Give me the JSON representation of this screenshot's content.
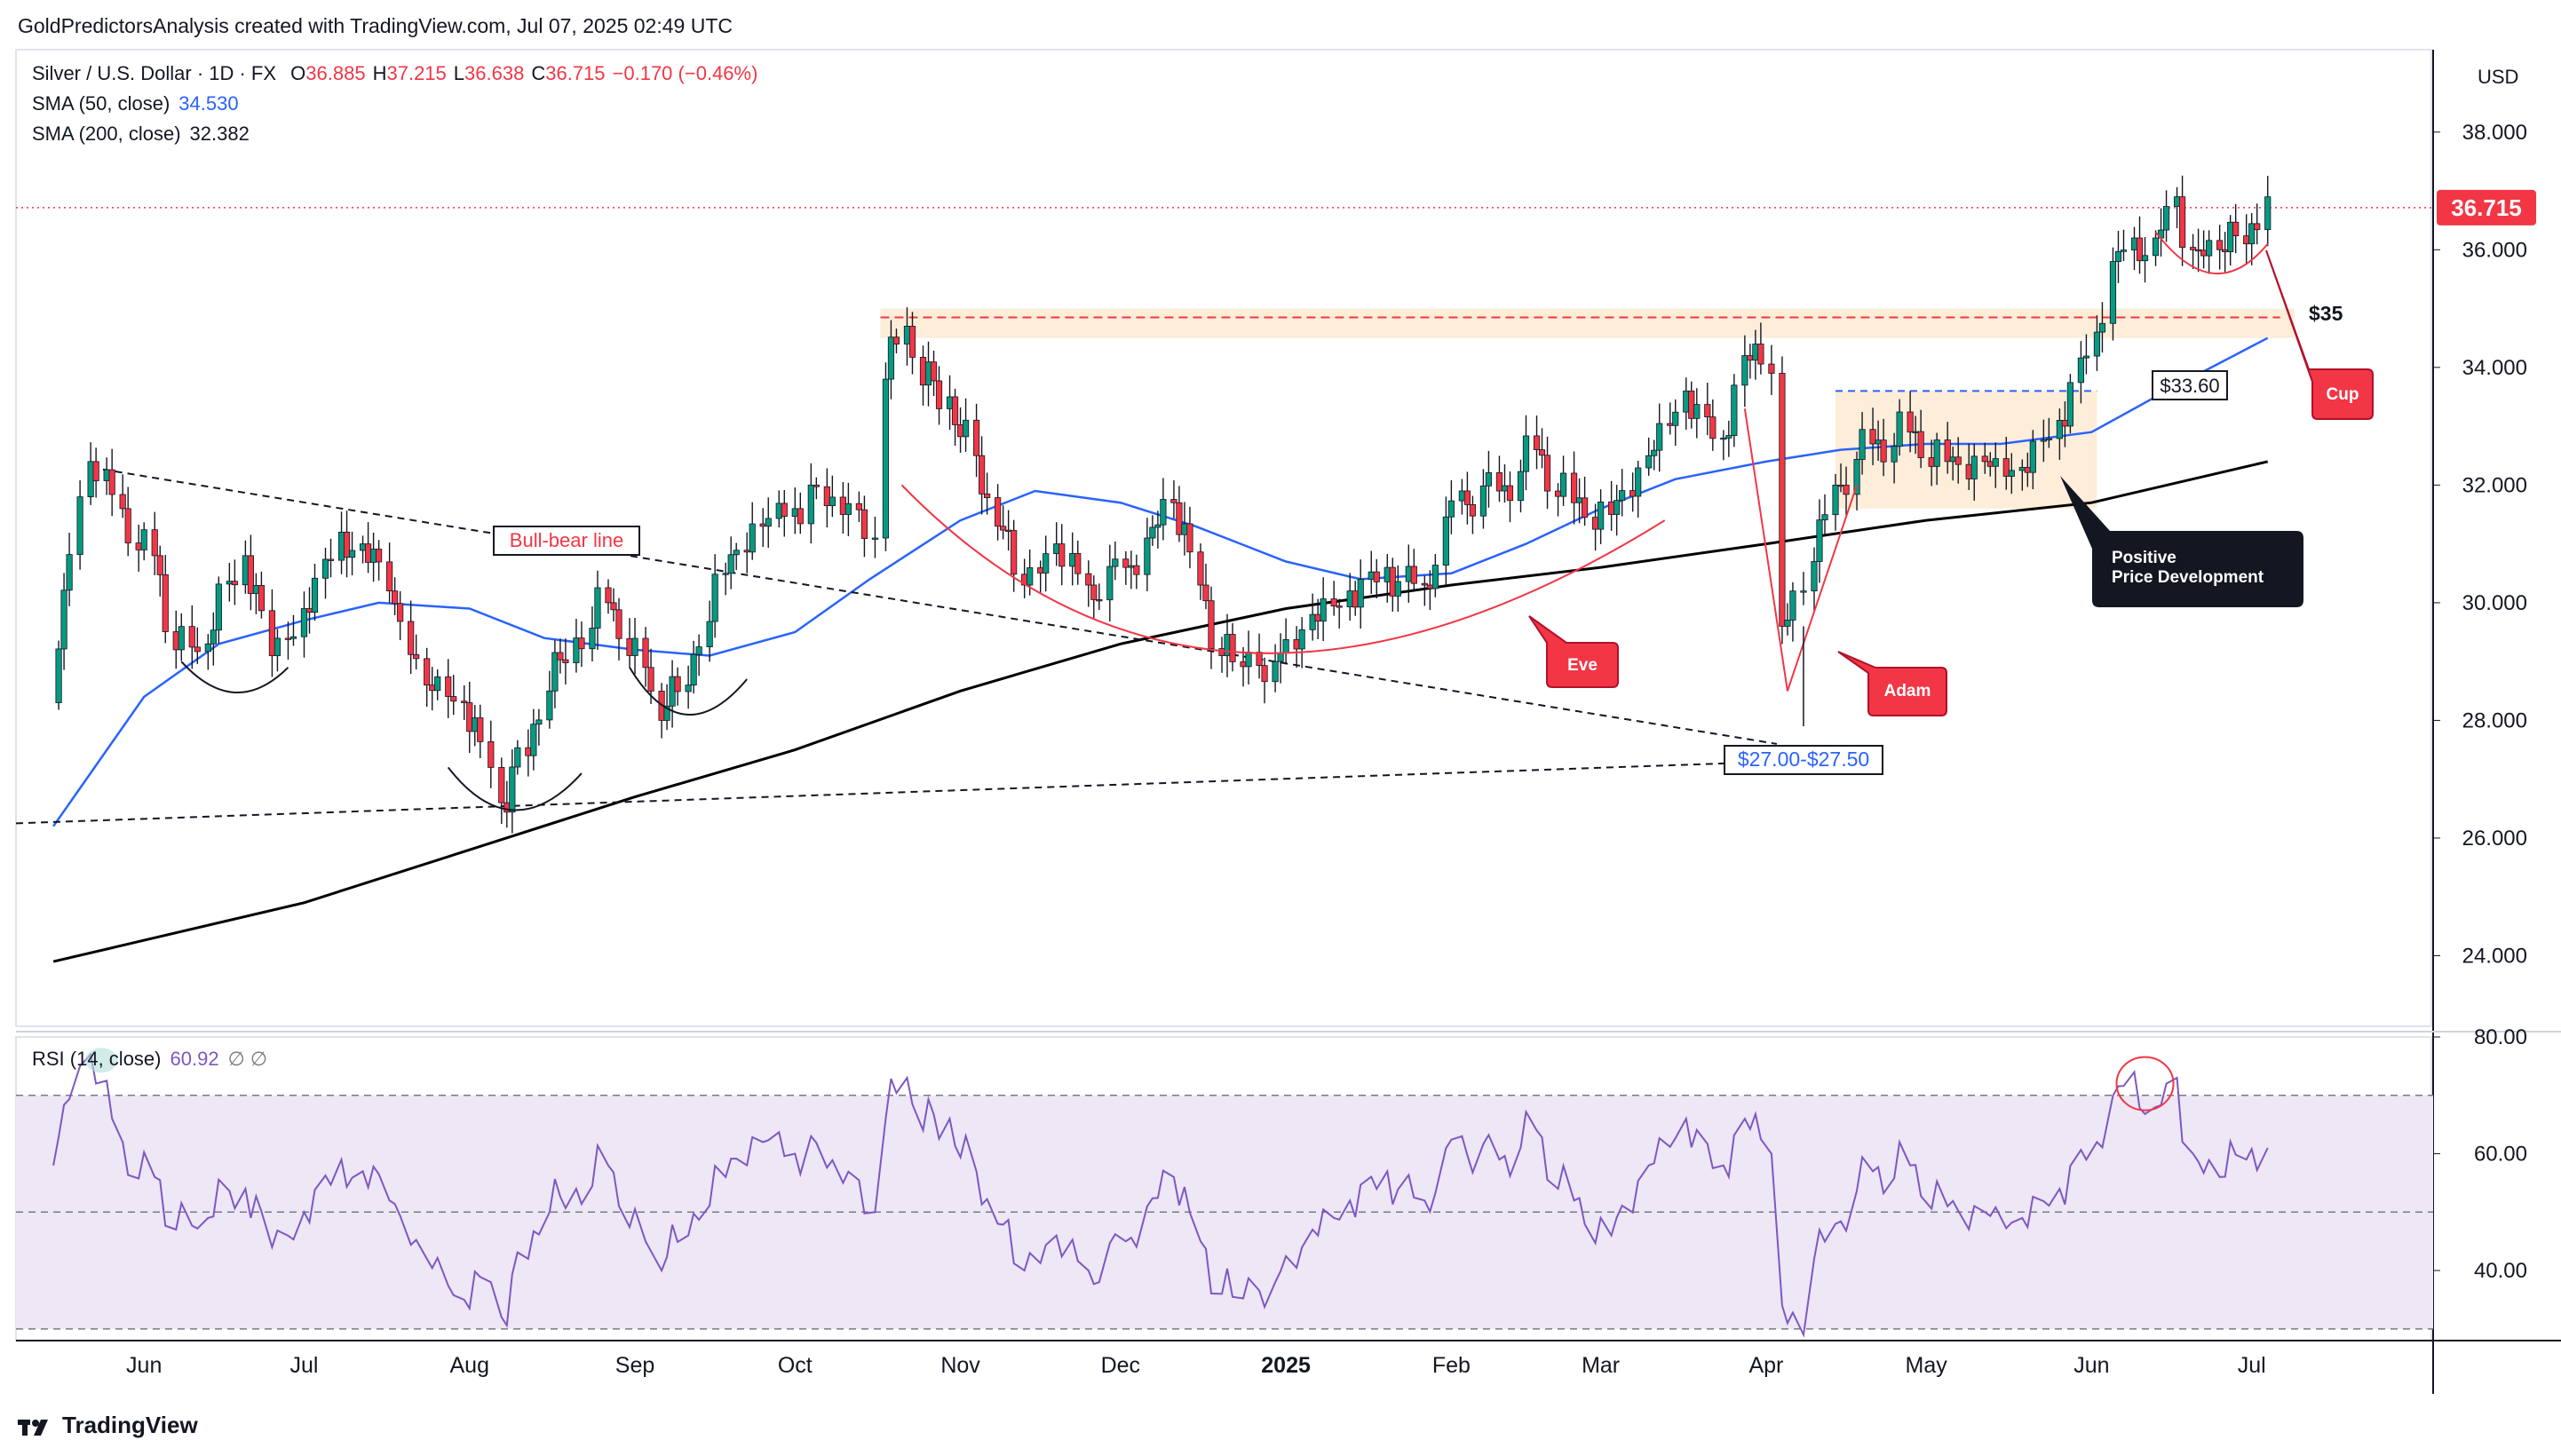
{
  "header": {
    "credit": "GoldPredictorsAnalysis created with TradingView.com, Jul 07, 2025 02:49 UTC"
  },
  "legend": {
    "symbol": "Silver / U.S. Dollar · 1D · FX",
    "ohlc": {
      "open_label": "O",
      "open": "36.885",
      "high_label": "H",
      "high": "37.215",
      "low_label": "L",
      "low": "36.638",
      "close_label": "C",
      "close": "36.715",
      "change": "−0.170 (−0.46%)"
    },
    "sma50": {
      "label": "SMA (50, close)",
      "value": "34.530"
    },
    "sma200": {
      "label": "SMA (200, close)",
      "value": "32.382"
    },
    "rsi": {
      "label": "RSI (14, close)",
      "value": "60.92",
      "extra": "∅  ∅"
    }
  },
  "brand": {
    "name": "TradingView"
  },
  "colors": {
    "up": "#089981",
    "down": "#f23645",
    "sma50": "#2962ff",
    "sma200": "#000000",
    "rsi": "#7e57c2",
    "rsi_band": "#ede7f6",
    "zone": "#fdebd5",
    "accent_red": "#f23645",
    "dark_box": "#131722"
  },
  "chart_data": [
    {
      "type": "candlestick",
      "title": "Silver / U.S. Dollar · 1D · FX",
      "currency": "USD",
      "ylim": [
        22.8,
        39.4
      ],
      "y_ticks": [
        24,
        26,
        28,
        30,
        32,
        34,
        36,
        38
      ],
      "y_tick_labels": [
        "24.000",
        "26.000",
        "28.000",
        "30.000",
        "32.000",
        "34.000",
        "36.000",
        "38.000"
      ],
      "x_labels": [
        "Jun",
        "Jul",
        "Aug",
        "Sep",
        "Oct",
        "Nov",
        "Dec",
        "2025",
        "Feb",
        "Mar",
        "Apr",
        "May",
        "Jun",
        "Jul"
      ],
      "last_price": "36.715",
      "close_series": [
        {
          "date": "2024-05-15",
          "close": 28.3
        },
        {
          "date": "2024-05-20",
          "close": 31.8
        },
        {
          "date": "2024-05-22",
          "close": 32.4
        },
        {
          "date": "2024-05-28",
          "close": 31.6
        },
        {
          "date": "2024-06-03",
          "close": 30.8
        },
        {
          "date": "2024-06-07",
          "close": 29.2
        },
        {
          "date": "2024-06-13",
          "close": 29.3
        },
        {
          "date": "2024-06-20",
          "close": 30.8
        },
        {
          "date": "2024-06-25",
          "close": 29.1
        },
        {
          "date": "2024-07-01",
          "close": 29.9
        },
        {
          "date": "2024-07-08",
          "close": 31.2
        },
        {
          "date": "2024-07-12",
          "close": 31.0
        },
        {
          "date": "2024-07-17",
          "close": 30.2
        },
        {
          "date": "2024-07-24",
          "close": 28.6
        },
        {
          "date": "2024-07-31",
          "close": 28.3
        },
        {
          "date": "2024-08-05",
          "close": 27.2
        },
        {
          "date": "2024-08-07",
          "close": 26.6
        },
        {
          "date": "2024-08-12",
          "close": 27.4
        },
        {
          "date": "2024-08-16",
          "close": 28.5
        },
        {
          "date": "2024-08-21",
          "close": 29.4
        },
        {
          "date": "2024-08-27",
          "close": 30.0
        },
        {
          "date": "2024-09-03",
          "close": 28.9
        },
        {
          "date": "2024-09-06",
          "close": 28.0
        },
        {
          "date": "2024-09-11",
          "close": 28.6
        },
        {
          "date": "2024-09-18",
          "close": 30.5
        },
        {
          "date": "2024-09-25",
          "close": 31.3
        },
        {
          "date": "2024-10-01",
          "close": 31.6
        },
        {
          "date": "2024-10-04",
          "close": 32.0
        },
        {
          "date": "2024-10-10",
          "close": 31.5
        },
        {
          "date": "2024-10-16",
          "close": 31.1
        },
        {
          "date": "2024-10-18",
          "close": 33.8
        },
        {
          "date": "2024-10-22",
          "close": 34.7
        },
        {
          "date": "2024-10-25",
          "close": 33.7
        },
        {
          "date": "2024-10-30",
          "close": 33.5
        },
        {
          "date": "2024-11-04",
          "close": 32.5
        },
        {
          "date": "2024-11-08",
          "close": 31.3
        },
        {
          "date": "2024-11-13",
          "close": 30.3
        },
        {
          "date": "2024-11-19",
          "close": 31.0
        },
        {
          "date": "2024-11-25",
          "close": 30.3
        },
        {
          "date": "2024-12-02",
          "close": 30.6
        },
        {
          "date": "2024-12-06",
          "close": 31.1
        },
        {
          "date": "2024-12-11",
          "close": 31.7
        },
        {
          "date": "2024-12-16",
          "close": 30.3
        },
        {
          "date": "2024-12-20",
          "close": 29.1
        },
        {
          "date": "2024-12-30",
          "close": 29.0
        },
        {
          "date": "2025-01-06",
          "close": 29.8
        },
        {
          "date": "2025-01-13",
          "close": 30.2
        },
        {
          "date": "2025-01-20",
          "close": 30.6
        },
        {
          "date": "2025-01-27",
          "close": 30.3
        },
        {
          "date": "2025-02-03",
          "close": 31.9
        },
        {
          "date": "2025-02-10",
          "close": 31.9
        },
        {
          "date": "2025-02-17",
          "close": 32.6
        },
        {
          "date": "2025-02-24",
          "close": 31.7
        },
        {
          "date": "2025-03-03",
          "close": 31.5
        },
        {
          "date": "2025-03-10",
          "close": 32.5
        },
        {
          "date": "2025-03-17",
          "close": 33.6
        },
        {
          "date": "2025-03-24",
          "close": 32.8
        },
        {
          "date": "2025-03-28",
          "close": 34.2
        },
        {
          "date": "2025-04-02",
          "close": 33.9
        },
        {
          "date": "2025-04-04",
          "close": 29.6
        },
        {
          "date": "2025-04-08",
          "close": 30.2
        },
        {
          "date": "2025-04-10",
          "close": 30.7
        },
        {
          "date": "2025-04-14",
          "close": 32.0
        },
        {
          "date": "2025-04-21",
          "close": 32.7
        },
        {
          "date": "2025-04-28",
          "close": 32.9
        },
        {
          "date": "2025-05-05",
          "close": 32.4
        },
        {
          "date": "2025-05-12",
          "close": 32.4
        },
        {
          "date": "2025-05-19",
          "close": 32.3
        },
        {
          "date": "2025-05-26",
          "close": 33.1
        },
        {
          "date": "2025-06-02",
          "close": 34.6
        },
        {
          "date": "2025-06-05",
          "close": 35.8
        },
        {
          "date": "2025-06-09",
          "close": 36.2
        },
        {
          "date": "2025-06-13",
          "close": 36.2
        },
        {
          "date": "2025-06-17",
          "close": 36.9
        },
        {
          "date": "2025-06-20",
          "close": 36.0
        },
        {
          "date": "2025-06-25",
          "close": 36.0
        },
        {
          "date": "2025-06-30",
          "close": 36.1
        },
        {
          "date": "2025-07-04",
          "close": 36.9
        }
      ],
      "sma50_series": [
        {
          "date": "2024-05-15",
          "value": 26.2
        },
        {
          "date": "2024-06-01",
          "value": 28.4
        },
        {
          "date": "2024-06-15",
          "value": 29.3
        },
        {
          "date": "2024-07-01",
          "value": 29.7
        },
        {
          "date": "2024-07-15",
          "value": 30.0
        },
        {
          "date": "2024-08-01",
          "value": 29.9
        },
        {
          "date": "2024-08-15",
          "value": 29.4
        },
        {
          "date": "2024-09-01",
          "value": 29.2
        },
        {
          "date": "2024-09-15",
          "value": 29.1
        },
        {
          "date": "2024-10-01",
          "value": 29.5
        },
        {
          "date": "2024-10-15",
          "value": 30.4
        },
        {
          "date": "2024-11-01",
          "value": 31.4
        },
        {
          "date": "2024-11-15",
          "value": 31.9
        },
        {
          "date": "2024-12-01",
          "value": 31.7
        },
        {
          "date": "2024-12-15",
          "value": 31.3
        },
        {
          "date": "2025-01-01",
          "value": 30.7
        },
        {
          "date": "2025-01-15",
          "value": 30.4
        },
        {
          "date": "2025-02-01",
          "value": 30.5
        },
        {
          "date": "2025-02-15",
          "value": 31.0
        },
        {
          "date": "2025-03-01",
          "value": 31.6
        },
        {
          "date": "2025-03-15",
          "value": 32.1
        },
        {
          "date": "2025-04-01",
          "value": 32.4
        },
        {
          "date": "2025-04-15",
          "value": 32.6
        },
        {
          "date": "2025-05-01",
          "value": 32.7
        },
        {
          "date": "2025-05-15",
          "value": 32.7
        },
        {
          "date": "2025-06-01",
          "value": 32.9
        },
        {
          "date": "2025-06-15",
          "value": 33.6
        },
        {
          "date": "2025-07-04",
          "value": 34.5
        }
      ],
      "sma200_series": [
        {
          "date": "2024-05-15",
          "value": 23.9
        },
        {
          "date": "2024-07-01",
          "value": 24.9
        },
        {
          "date": "2024-08-01",
          "value": 25.8
        },
        {
          "date": "2024-09-01",
          "value": 26.7
        },
        {
          "date": "2024-10-01",
          "value": 27.5
        },
        {
          "date": "2024-11-01",
          "value": 28.5
        },
        {
          "date": "2024-12-01",
          "value": 29.3
        },
        {
          "date": "2025-01-01",
          "value": 29.9
        },
        {
          "date": "2025-02-01",
          "value": 30.3
        },
        {
          "date": "2025-03-01",
          "value": 30.6
        },
        {
          "date": "2025-04-01",
          "value": 31.0
        },
        {
          "date": "2025-05-01",
          "value": 31.4
        },
        {
          "date": "2025-06-01",
          "value": 31.7
        },
        {
          "date": "2025-07-04",
          "value": 32.4
        }
      ],
      "annotations": {
        "bull_bear_line": "Bull-bear line",
        "support_range": "$27.00-$27.50",
        "level_33": "$33.60",
        "level_35": "$35",
        "eve": "Eve",
        "adam": "Adam",
        "cup": "Cup",
        "positive_line1": "Positive",
        "positive_line2": "Price Development"
      }
    },
    {
      "type": "line",
      "title": "RSI (14, close)",
      "ylim": [
        28,
        80
      ],
      "y_ticks": [
        40,
        60,
        80
      ],
      "y_tick_labels": [
        "40.00",
        "60.00",
        "80.00"
      ],
      "overbought": 70,
      "oversold": 30,
      "middle": 50,
      "last": 60.92,
      "series": [
        {
          "date": "2024-05-15",
          "value": 58
        },
        {
          "date": "2024-05-20",
          "value": 75
        },
        {
          "date": "2024-05-22",
          "value": 77
        },
        {
          "date": "2024-05-28",
          "value": 62
        },
        {
          "date": "2024-06-03",
          "value": 56
        },
        {
          "date": "2024-06-07",
          "value": 47
        },
        {
          "date": "2024-06-13",
          "value": 49
        },
        {
          "date": "2024-06-20",
          "value": 54
        },
        {
          "date": "2024-06-25",
          "value": 44
        },
        {
          "date": "2024-07-01",
          "value": 50
        },
        {
          "date": "2024-07-08",
          "value": 59
        },
        {
          "date": "2024-07-12",
          "value": 57
        },
        {
          "date": "2024-07-17",
          "value": 52
        },
        {
          "date": "2024-07-24",
          "value": 42
        },
        {
          "date": "2024-07-31",
          "value": 35
        },
        {
          "date": "2024-08-05",
          "value": 38
        },
        {
          "date": "2024-08-07",
          "value": 32
        },
        {
          "date": "2024-08-12",
          "value": 42
        },
        {
          "date": "2024-08-16",
          "value": 50
        },
        {
          "date": "2024-08-21",
          "value": 54
        },
        {
          "date": "2024-08-27",
          "value": 58
        },
        {
          "date": "2024-09-03",
          "value": 45
        },
        {
          "date": "2024-09-06",
          "value": 40
        },
        {
          "date": "2024-09-11",
          "value": 46
        },
        {
          "date": "2024-09-18",
          "value": 56
        },
        {
          "date": "2024-09-25",
          "value": 62
        },
        {
          "date": "2024-10-01",
          "value": 60
        },
        {
          "date": "2024-10-04",
          "value": 63
        },
        {
          "date": "2024-10-10",
          "value": 55
        },
        {
          "date": "2024-10-16",
          "value": 50
        },
        {
          "date": "2024-10-18",
          "value": 66
        },
        {
          "date": "2024-10-22",
          "value": 73
        },
        {
          "date": "2024-10-25",
          "value": 64
        },
        {
          "date": "2024-10-30",
          "value": 66
        },
        {
          "date": "2024-11-04",
          "value": 57
        },
        {
          "date": "2024-11-08",
          "value": 48
        },
        {
          "date": "2024-11-13",
          "value": 40
        },
        {
          "date": "2024-11-19",
          "value": 46
        },
        {
          "date": "2024-11-25",
          "value": 40
        },
        {
          "date": "2024-12-02",
          "value": 45
        },
        {
          "date": "2024-12-06",
          "value": 51
        },
        {
          "date": "2024-12-11",
          "value": 56
        },
        {
          "date": "2024-12-16",
          "value": 45
        },
        {
          "date": "2024-12-20",
          "value": 36
        },
        {
          "date": "2024-12-30",
          "value": 38
        },
        {
          "date": "2025-01-06",
          "value": 47
        },
        {
          "date": "2025-01-13",
          "value": 52
        },
        {
          "date": "2025-01-20",
          "value": 57
        },
        {
          "date": "2025-01-27",
          "value": 52
        },
        {
          "date": "2025-02-03",
          "value": 63
        },
        {
          "date": "2025-02-10",
          "value": 59
        },
        {
          "date": "2025-02-17",
          "value": 64
        },
        {
          "date": "2025-02-24",
          "value": 52
        },
        {
          "date": "2025-03-03",
          "value": 46
        },
        {
          "date": "2025-03-10",
          "value": 58
        },
        {
          "date": "2025-03-17",
          "value": 66
        },
        {
          "date": "2025-03-24",
          "value": 58
        },
        {
          "date": "2025-03-28",
          "value": 66
        },
        {
          "date": "2025-04-02",
          "value": 60
        },
        {
          "date": "2025-04-04",
          "value": 34
        },
        {
          "date": "2025-04-08",
          "value": 29
        },
        {
          "date": "2025-04-10",
          "value": 42
        },
        {
          "date": "2025-04-14",
          "value": 48
        },
        {
          "date": "2025-04-21",
          "value": 57
        },
        {
          "date": "2025-04-28",
          "value": 58
        },
        {
          "date": "2025-05-05",
          "value": 51
        },
        {
          "date": "2025-05-12",
          "value": 50
        },
        {
          "date": "2025-05-19",
          "value": 49
        },
        {
          "date": "2025-05-26",
          "value": 54
        },
        {
          "date": "2025-06-02",
          "value": 62
        },
        {
          "date": "2025-06-05",
          "value": 70
        },
        {
          "date": "2025-06-09",
          "value": 74
        },
        {
          "date": "2025-06-13",
          "value": 68
        },
        {
          "date": "2025-06-17",
          "value": 73
        },
        {
          "date": "2025-06-20",
          "value": 60
        },
        {
          "date": "2025-06-25",
          "value": 56
        },
        {
          "date": "2025-06-30",
          "value": 59
        },
        {
          "date": "2025-07-04",
          "value": 61
        }
      ]
    }
  ]
}
